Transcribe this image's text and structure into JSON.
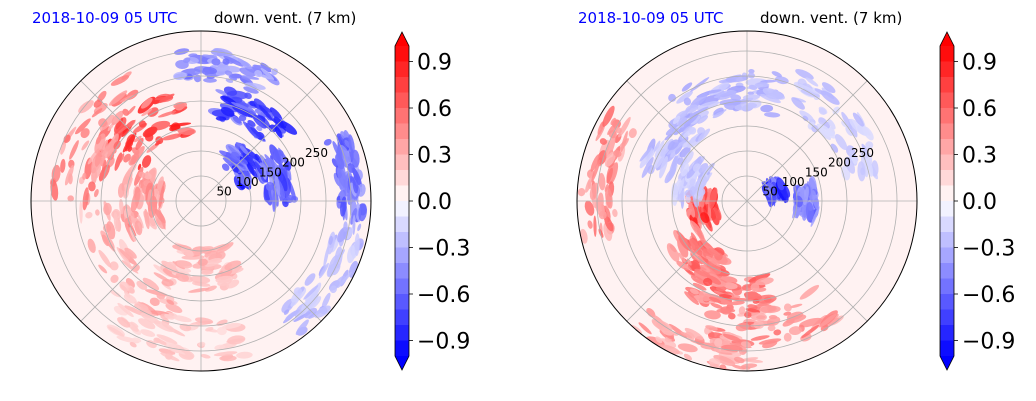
{
  "chart_data": [
    {
      "type": "heatmap",
      "projection": "polar",
      "title_left": "2018-10-09 05 UTC",
      "title_right": "down. vent. (7 km)",
      "title_left_color": "#0000ff",
      "radial_ticks": [
        50,
        100,
        150,
        200,
        250
      ],
      "radial_max": 340,
      "colorbar": {
        "vmin": -1.0,
        "vmax": 1.0,
        "extend": "both",
        "tick_values": [
          -0.9,
          -0.6,
          -0.3,
          0.0,
          0.3,
          0.6,
          0.9
        ],
        "tick_labels": [
          "−0.9",
          "−0.6",
          "−0.3",
          "0.0",
          "0.3",
          "0.6",
          "0.9"
        ],
        "cmap": "bwr",
        "levels": 20
      },
      "pattern": {
        "blobs": [
          {
            "r": 180,
            "theta": 130,
            "value": 0.9,
            "spread": 70
          },
          {
            "r": 250,
            "theta": 150,
            "value": 0.6,
            "spread": 70
          },
          {
            "r": 120,
            "theta": 180,
            "value": 0.5,
            "spread": 60
          },
          {
            "r": 200,
            "theta": 220,
            "value": 0.4,
            "spread": 80
          },
          {
            "r": 140,
            "theta": 270,
            "value": 0.35,
            "spread": 60
          },
          {
            "r": 280,
            "theta": 260,
            "value": 0.3,
            "spread": 60
          },
          {
            "r": 110,
            "theta": 40,
            "value": -0.95,
            "spread": 40
          },
          {
            "r": 200,
            "theta": 60,
            "value": -0.9,
            "spread": 45
          },
          {
            "r": 160,
            "theta": 15,
            "value": -0.8,
            "spread": 40
          },
          {
            "r": 300,
            "theta": 10,
            "value": -0.7,
            "spread": 35
          },
          {
            "r": 270,
            "theta": 80,
            "value": -0.6,
            "spread": 45
          },
          {
            "r": 300,
            "theta": 330,
            "value": -0.35,
            "spread": 50
          }
        ]
      }
    },
    {
      "type": "heatmap",
      "projection": "polar",
      "title_left": "2018-10-09 05 UTC",
      "title_right": "down. vent. (7 km)",
      "title_left_color": "#0000ff",
      "radial_ticks": [
        50,
        100,
        150,
        200,
        250
      ],
      "radial_max": 340,
      "colorbar": {
        "vmin": -1.0,
        "vmax": 1.0,
        "extend": "both",
        "tick_values": [
          -0.9,
          -0.6,
          -0.3,
          0.0,
          0.3,
          0.6,
          0.9
        ],
        "tick_labels": [
          "−0.9",
          "−0.6",
          "−0.3",
          "0.0",
          "0.3",
          "0.6",
          "0.9"
        ],
        "cmap": "bwr",
        "levels": 20
      },
      "pattern": {
        "blobs": [
          {
            "r": 90,
            "theta": 190,
            "value": 0.9,
            "spread": 40
          },
          {
            "r": 150,
            "theta": 230,
            "value": 0.7,
            "spread": 50
          },
          {
            "r": 190,
            "theta": 260,
            "value": 0.7,
            "spread": 50
          },
          {
            "r": 260,
            "theta": 280,
            "value": 0.6,
            "spread": 60
          },
          {
            "r": 300,
            "theta": 170,
            "value": 0.6,
            "spread": 50
          },
          {
            "r": 320,
            "theta": 250,
            "value": 0.5,
            "spread": 50
          },
          {
            "r": 60,
            "theta": 20,
            "value": -0.95,
            "spread": 25
          },
          {
            "r": 120,
            "theta": 0,
            "value": -0.7,
            "spread": 30
          },
          {
            "r": 220,
            "theta": 100,
            "value": -0.4,
            "spread": 60
          },
          {
            "r": 190,
            "theta": 140,
            "value": -0.35,
            "spread": 50
          },
          {
            "r": 240,
            "theta": 40,
            "value": -0.3,
            "spread": 60
          },
          {
            "r": 120,
            "theta": 160,
            "value": -0.3,
            "spread": 40
          }
        ]
      }
    }
  ]
}
